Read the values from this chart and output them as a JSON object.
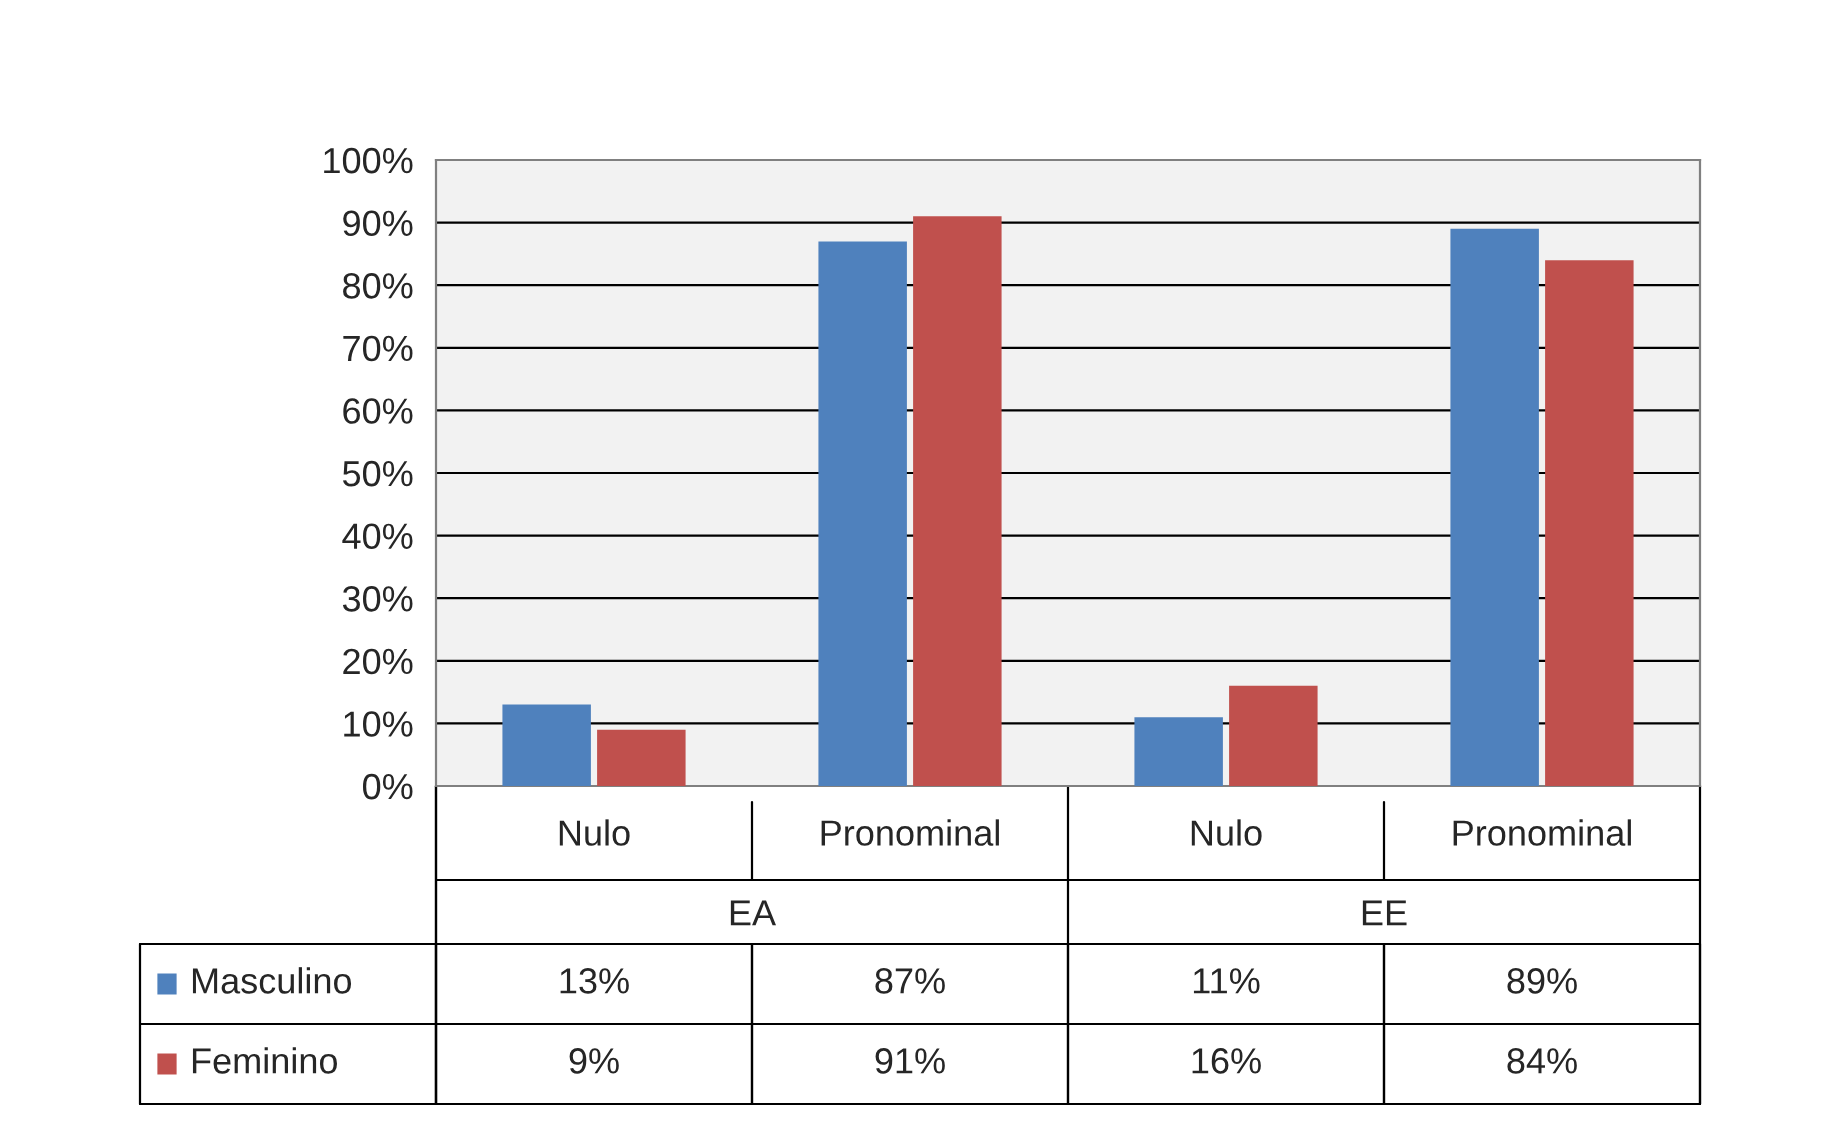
{
  "chart_data": {
    "type": "bar",
    "categories": [
      "Nulo",
      "Pronominal",
      "Nulo",
      "Pronominal"
    ],
    "annotations": [
      "EA",
      "EE"
    ],
    "series": [
      {
        "name": "Masculino",
        "color": "#4f81bd",
        "values": [
          13,
          87,
          11,
          89
        ],
        "value_labels": [
          "13%",
          "87%",
          "11%",
          "89%"
        ]
      },
      {
        "name": "Feminino",
        "color": "#c0504d",
        "values": [
          9,
          91,
          16,
          84
        ],
        "value_labels": [
          "9%",
          "91%",
          "16%",
          "84%"
        ]
      }
    ],
    "ylim": [
      0,
      100
    ],
    "yticks": [
      {
        "value": 0,
        "label": "0%"
      },
      {
        "value": 10,
        "label": "10%"
      },
      {
        "value": 20,
        "label": "20%"
      },
      {
        "value": 30,
        "label": "30%"
      },
      {
        "value": 40,
        "label": "40%"
      },
      {
        "value": 50,
        "label": "50%"
      },
      {
        "value": 60,
        "label": "60%"
      },
      {
        "value": 70,
        "label": "70%"
      },
      {
        "value": 80,
        "label": "80%"
      },
      {
        "value": 90,
        "label": "90%"
      },
      {
        "value": 100,
        "label": "100%"
      }
    ],
    "grid": "y",
    "legend": "bottom"
  }
}
